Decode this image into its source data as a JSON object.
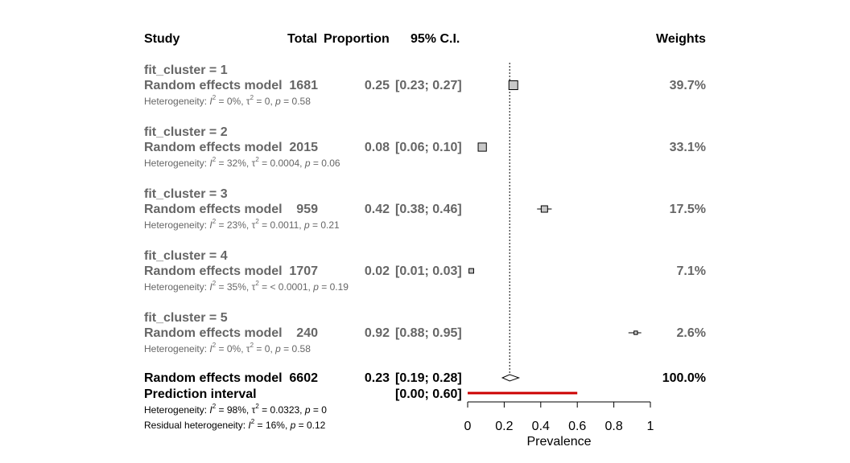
{
  "headers": {
    "study": "Study",
    "total": "Total",
    "proportion": "Proportion",
    "ci": "95% C.I.",
    "weights": "Weights"
  },
  "chart_data": {
    "type": "forest",
    "xlabel": "Prevalence",
    "xlim": [
      0,
      1
    ],
    "xticks": [
      0,
      0.2,
      0.4,
      0.6,
      0.8,
      1
    ],
    "xtick_labels": [
      "0",
      "0.2",
      "0.4",
      "0.6",
      "0.8",
      "1"
    ],
    "reference_line": 0.23,
    "groups": [
      {
        "title": "fit_cluster = 1",
        "label": "Random effects model",
        "total": "1681",
        "proportion": 0.25,
        "proportion_text": "0.25",
        "ci": [
          0.23,
          0.27
        ],
        "ci_text": "[0.23; 0.27]",
        "weight": 39.7,
        "weight_text": "39.7%",
        "het": {
          "I2": "0%",
          "tau2": "0",
          "p": "0.58"
        }
      },
      {
        "title": "fit_cluster = 2",
        "label": "Random effects model",
        "total": "2015",
        "proportion": 0.08,
        "proportion_text": "0.08",
        "ci": [
          0.06,
          0.1
        ],
        "ci_text": "[0.06; 0.10]",
        "weight": 33.1,
        "weight_text": "33.1%",
        "het": {
          "I2": "32%",
          "tau2": "0.0004",
          "p": "0.06"
        }
      },
      {
        "title": "fit_cluster = 3",
        "label": "Random effects model",
        "total": "959",
        "proportion": 0.42,
        "proportion_text": "0.42",
        "ci": [
          0.38,
          0.46
        ],
        "ci_text": "[0.38; 0.46]",
        "weight": 17.5,
        "weight_text": "17.5%",
        "het": {
          "I2": "23%",
          "tau2": "0.0011",
          "p": "0.21"
        }
      },
      {
        "title": "fit_cluster = 4",
        "label": "Random effects model",
        "total": "1707",
        "proportion": 0.02,
        "proportion_text": "0.02",
        "ci": [
          0.01,
          0.03
        ],
        "ci_text": "[0.01; 0.03]",
        "weight": 7.1,
        "weight_text": "7.1%",
        "het": {
          "I2": "35%",
          "tau2": "< 0.0001",
          "p": "0.19"
        }
      },
      {
        "title": "fit_cluster = 5",
        "label": "Random effects model",
        "total": "240",
        "proportion": 0.92,
        "proportion_text": "0.92",
        "ci": [
          0.88,
          0.95
        ],
        "ci_text": "[0.88; 0.95]",
        "weight": 2.6,
        "weight_text": "2.6%",
        "het": {
          "I2": "0%",
          "tau2": "0",
          "p": "0.58"
        }
      }
    ],
    "overall": {
      "label": "Random effects model",
      "total": "6602",
      "proportion": 0.23,
      "proportion_text": "0.23",
      "ci": [
        0.19,
        0.28
      ],
      "ci_text": "[0.19; 0.28]",
      "weight_text": "100.0%"
    },
    "prediction": {
      "label": "Prediction interval",
      "ci": [
        0.0,
        0.6
      ],
      "ci_text": "[0.00; 0.60]",
      "color": "#cc0000"
    },
    "het_overall": {
      "I2": "98%",
      "tau2": "0.0323",
      "p": "0"
    },
    "residual_het": {
      "I2": "16%",
      "p": "0.12"
    },
    "het_prefix": "Heterogeneity: ",
    "residual_prefix": "Residual heterogeneity: "
  }
}
